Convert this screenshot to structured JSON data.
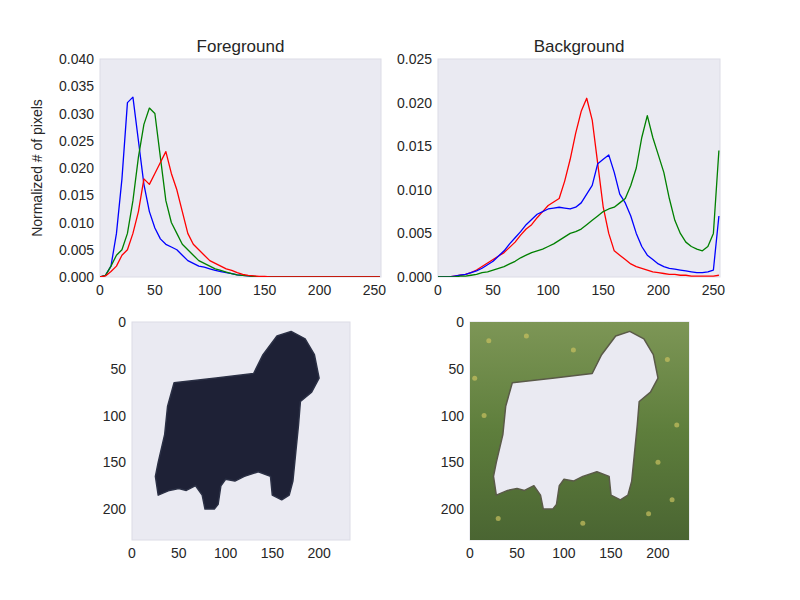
{
  "chart_data": [
    {
      "type": "line",
      "title": "Foreground",
      "y_label": "Normalized # of pixels",
      "x": [
        0,
        5,
        10,
        15,
        20,
        25,
        30,
        35,
        40,
        45,
        50,
        55,
        60,
        65,
        70,
        75,
        80,
        85,
        90,
        95,
        100,
        105,
        110,
        115,
        120,
        125,
        130,
        135,
        140,
        145,
        150,
        155,
        160,
        165,
        170,
        175,
        180,
        185,
        190,
        195,
        200,
        205,
        210,
        215,
        220,
        225,
        230,
        235,
        240,
        245,
        250,
        255
      ],
      "series": [
        {
          "color": "blue",
          "values": [
            0,
            0.0003,
            0.002,
            0.008,
            0.018,
            0.032,
            0.033,
            0.025,
            0.017,
            0.012,
            0.009,
            0.007,
            0.006,
            0.0055,
            0.005,
            0.004,
            0.003,
            0.0025,
            0.002,
            0.0018,
            0.0015,
            0.0012,
            0.001,
            0.0008,
            0.0006,
            0.0004,
            0.0003,
            0.0002,
            0.0001,
            0,
            0,
            0,
            0,
            0,
            0,
            0,
            0,
            0,
            0,
            0,
            0,
            0,
            0,
            0,
            0,
            0,
            0,
            0,
            0,
            0,
            0,
            0
          ]
        },
        {
          "color": "green",
          "values": [
            0,
            0.0003,
            0.002,
            0.004,
            0.005,
            0.008,
            0.014,
            0.022,
            0.028,
            0.031,
            0.03,
            0.022,
            0.014,
            0.01,
            0.008,
            0.006,
            0.005,
            0.004,
            0.003,
            0.0025,
            0.002,
            0.0015,
            0.0012,
            0.0009,
            0.0006,
            0.0004,
            0.0003,
            0.0002,
            0.0001,
            0,
            0,
            0,
            0,
            0,
            0,
            0,
            0,
            0,
            0,
            0,
            0,
            0,
            0,
            0,
            0,
            0,
            0,
            0,
            0,
            0,
            0,
            0
          ]
        },
        {
          "color": "red",
          "values": [
            0,
            0.0002,
            0.001,
            0.002,
            0.004,
            0.005,
            0.008,
            0.012,
            0.018,
            0.017,
            0.019,
            0.021,
            0.023,
            0.019,
            0.016,
            0.012,
            0.008,
            0.006,
            0.005,
            0.004,
            0.003,
            0.0025,
            0.002,
            0.0015,
            0.0012,
            0.0008,
            0.0005,
            0.0003,
            0.0002,
            0.0001,
            0.0001,
            0,
            0,
            0,
            0,
            0,
            0,
            0,
            0,
            0,
            0,
            0,
            0,
            0,
            0,
            0,
            0,
            0,
            0,
            0,
            0,
            0
          ]
        }
      ],
      "xlim": [
        0,
        256
      ],
      "xticks": [
        0,
        50,
        100,
        150,
        200,
        250
      ],
      "ylim": [
        0,
        0.04
      ],
      "yticks": [
        {
          "value": 0,
          "label": "0.000"
        },
        {
          "value": 0.005,
          "label": "0.005"
        },
        {
          "value": 0.01,
          "label": "0.010"
        },
        {
          "value": 0.015,
          "label": "0.015"
        },
        {
          "value": 0.02,
          "label": "0.020"
        },
        {
          "value": 0.025,
          "label": "0.025"
        },
        {
          "value": 0.03,
          "label": "0.030"
        },
        {
          "value": 0.035,
          "label": "0.035"
        },
        {
          "value": 0.04,
          "label": "0.040"
        }
      ],
      "grid": false
    },
    {
      "type": "line",
      "title": "Background",
      "x": [
        0,
        5,
        10,
        15,
        20,
        25,
        30,
        35,
        40,
        45,
        50,
        55,
        60,
        65,
        70,
        75,
        80,
        85,
        90,
        95,
        100,
        105,
        110,
        115,
        120,
        125,
        130,
        135,
        140,
        145,
        150,
        155,
        160,
        165,
        170,
        175,
        180,
        185,
        190,
        195,
        200,
        205,
        210,
        215,
        220,
        225,
        230,
        235,
        240,
        245,
        250,
        255
      ],
      "series": [
        {
          "color": "red",
          "values": [
            0,
            0,
            0,
            0.0001,
            0.0002,
            0.0003,
            0.0005,
            0.0008,
            0.0012,
            0.0016,
            0.002,
            0.0024,
            0.0028,
            0.0034,
            0.004,
            0.0048,
            0.0055,
            0.006,
            0.0068,
            0.0075,
            0.0082,
            0.0086,
            0.009,
            0.011,
            0.0135,
            0.0165,
            0.019,
            0.0205,
            0.018,
            0.013,
            0.008,
            0.005,
            0.003,
            0.0025,
            0.002,
            0.0015,
            0.0012,
            0.001,
            0.0008,
            0.0006,
            0.0005,
            0.0004,
            0.0003,
            0.0003,
            0.0002,
            0.0002,
            0.0001,
            0.0001,
            0.0001,
            0.0001,
            0.0001,
            0.0002
          ]
        },
        {
          "color": "blue",
          "values": [
            0,
            0,
            0,
            0.0001,
            0.0002,
            0.0003,
            0.0005,
            0.0007,
            0.001,
            0.0014,
            0.0018,
            0.0024,
            0.003,
            0.0038,
            0.0045,
            0.0052,
            0.006,
            0.0066,
            0.0072,
            0.0075,
            0.0078,
            0.0079,
            0.008,
            0.0079,
            0.0078,
            0.008,
            0.0085,
            0.0095,
            0.0105,
            0.013,
            0.0135,
            0.014,
            0.012,
            0.0095,
            0.0085,
            0.007,
            0.005,
            0.0035,
            0.0025,
            0.002,
            0.0015,
            0.0012,
            0.001,
            0.0009,
            0.0008,
            0.0007,
            0.0006,
            0.0005,
            0.0005,
            0.0006,
            0.0008,
            0.007
          ]
        },
        {
          "color": "green",
          "values": [
            0,
            0,
            0,
            0,
            0.0001,
            0.0001,
            0.0002,
            0.0003,
            0.0005,
            0.0006,
            0.0008,
            0.001,
            0.0012,
            0.0015,
            0.0018,
            0.0022,
            0.0025,
            0.0028,
            0.003,
            0.0032,
            0.0035,
            0.0038,
            0.0042,
            0.0046,
            0.005,
            0.0052,
            0.0055,
            0.006,
            0.0065,
            0.007,
            0.0075,
            0.0078,
            0.008,
            0.0085,
            0.009,
            0.0105,
            0.0125,
            0.016,
            0.0185,
            0.016,
            0.014,
            0.012,
            0.009,
            0.0065,
            0.005,
            0.004,
            0.0035,
            0.0032,
            0.003,
            0.0035,
            0.005,
            0.0145
          ]
        }
      ],
      "xlim": [
        0,
        256
      ],
      "xticks": [
        0,
        50,
        100,
        150,
        200,
        250
      ],
      "ylim": [
        0,
        0.025
      ],
      "yticks": [
        {
          "value": 0,
          "label": "0.000"
        },
        {
          "value": 0.005,
          "label": "0.005"
        },
        {
          "value": 0.01,
          "label": "0.010"
        },
        {
          "value": 0.015,
          "label": "0.015"
        },
        {
          "value": 0.02,
          "label": "0.020"
        },
        {
          "value": 0.025,
          "label": "0.025"
        }
      ],
      "grid": false
    },
    {
      "type": "image",
      "xlim": [
        0,
        233
      ],
      "ylim": [
        233,
        0
      ],
      "xticks": [
        0,
        50,
        100,
        150,
        200
      ],
      "yticks": [
        0,
        50,
        100,
        150,
        200
      ],
      "grid": false
    },
    {
      "type": "image",
      "xlim": [
        0,
        233
      ],
      "ylim": [
        233,
        0
      ],
      "xticks": [
        0,
        50,
        100,
        150,
        200
      ],
      "yticks": [
        0,
        50,
        100,
        150,
        200
      ],
      "grid": false
    }
  ]
}
